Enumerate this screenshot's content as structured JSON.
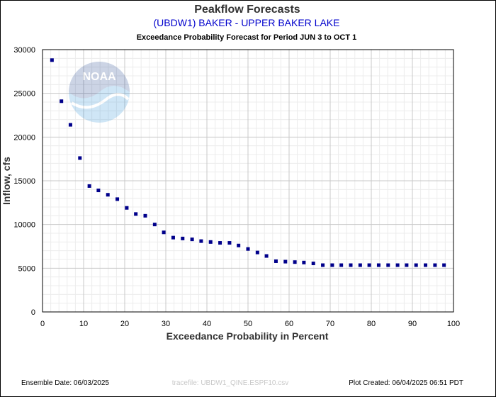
{
  "chart_data": {
    "type": "scatter",
    "title": "Peakflow Forecasts",
    "subtitle": "(UBDW1) BAKER - UPPER BAKER LAKE",
    "subtitle2": "Exceedance Probability Forecast for Period JUN 3 to OCT 1",
    "xlabel": "Exceedance Probability in Percent",
    "ylabel": "Inflow, cfs",
    "xlim": [
      0,
      100
    ],
    "ylim": [
      0,
      30000
    ],
    "x_ticks": [
      0,
      10,
      20,
      30,
      40,
      50,
      60,
      70,
      80,
      90,
      100
    ],
    "y_ticks": [
      0,
      5000,
      10000,
      15000,
      20000,
      25000,
      30000
    ],
    "grid": true,
    "marker_color": "#00008b",
    "x": [
      2.3,
      4.6,
      6.8,
      9.1,
      11.4,
      13.6,
      15.9,
      18.2,
      20.5,
      22.7,
      25.0,
      27.3,
      29.5,
      31.8,
      34.1,
      36.4,
      38.6,
      40.9,
      43.2,
      45.5,
      47.7,
      50.0,
      52.3,
      54.5,
      56.8,
      59.1,
      61.4,
      63.6,
      65.9,
      68.2,
      70.5,
      72.7,
      75.0,
      77.3,
      79.5,
      81.8,
      84.1,
      86.4,
      88.6,
      90.9,
      93.2,
      95.5,
      97.7
    ],
    "y": [
      28800,
      24100,
      21400,
      17600,
      14400,
      13900,
      13400,
      12900,
      11900,
      11200,
      11000,
      10000,
      9100,
      8500,
      8400,
      8300,
      8100,
      8000,
      7900,
      7900,
      7600,
      7200,
      6800,
      6400,
      5800,
      5750,
      5700,
      5650,
      5550,
      5350,
      5350,
      5350,
      5350,
      5350,
      5350,
      5350,
      5350,
      5350,
      5350,
      5350,
      5350,
      5350,
      5350
    ]
  },
  "footer": {
    "ensemble_date": "Ensemble Date: 06/03/2025",
    "tracefile": "tracefile: UBDW1_QINE.ESPF10.csv",
    "plot_created": "Plot Created: 06/04/2025 06:51 PDT"
  },
  "logo_text": "NOAA"
}
